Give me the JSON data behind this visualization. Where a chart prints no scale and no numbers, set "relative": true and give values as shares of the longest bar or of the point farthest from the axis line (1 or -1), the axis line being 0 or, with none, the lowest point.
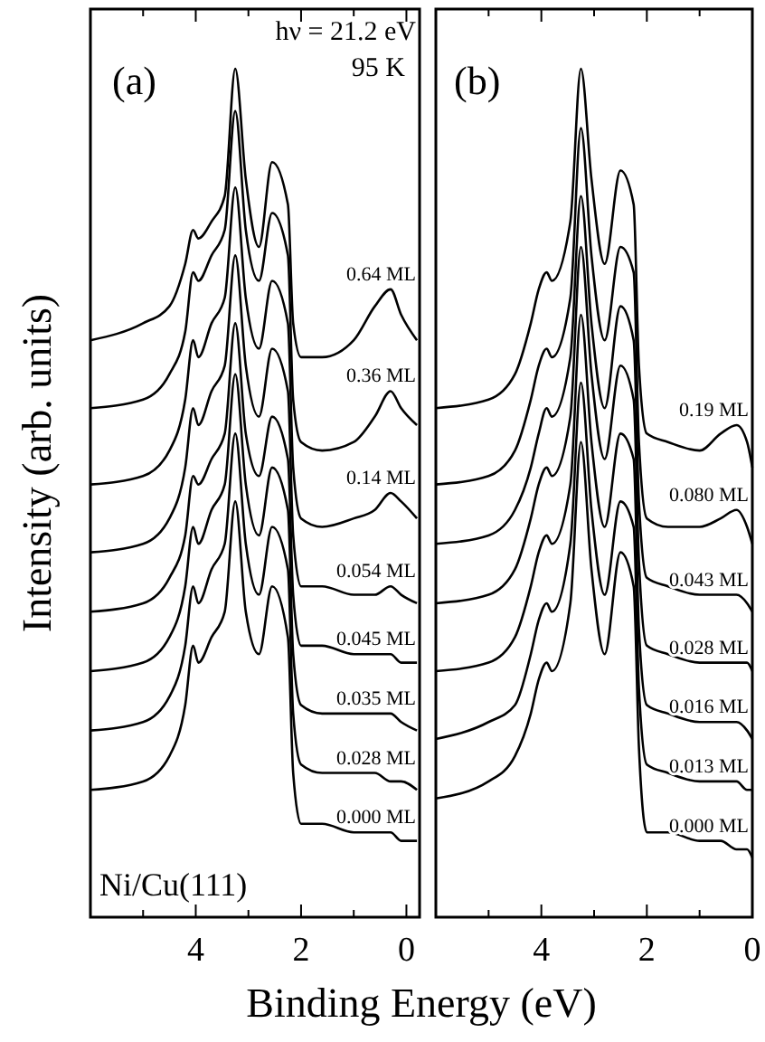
{
  "chart_data": [
    {
      "type": "line",
      "relative": true,
      "xlabel": "Binding Energy (eV)",
      "ylabel": "Intensity (arb. units)",
      "xlim": [
        6,
        -0.25
      ],
      "xticks": [
        {
          "value": 5,
          "label": null
        },
        4,
        {
          "value": 3,
          "label": null
        },
        2,
        {
          "value": 1,
          "label": null
        },
        0
      ],
      "tick_labels": "x",
      "grid": false,
      "annotations": [
        "(a)",
        "hν = 21.2 eV",
        "95 K",
        "Ni/Cu(111)"
      ],
      "x": [
        6,
        5,
        4.5,
        4.2,
        4.05,
        3.95,
        3.7,
        3.45,
        3.25,
        3.05,
        2.8,
        2.55,
        2.25,
        2.15,
        2.0,
        1.6,
        1.0,
        0.6,
        0.3,
        0.1,
        -0.2
      ],
      "series": [
        {
          "name": "0.64 ML",
          "color": "#000000",
          "values": [
            0.68,
            0.7,
            0.72,
            0.77,
            0.81,
            0.8,
            0.82,
            0.85,
            1,
            0.87,
            0.79,
            0.89,
            0.84,
            0.7,
            0.66,
            0.66,
            0.68,
            0.72,
            0.74,
            0.71,
            0.68
          ]
        },
        {
          "name": "0.36 ML",
          "color": "#000000",
          "values": [
            0.6,
            0.61,
            0.64,
            0.69,
            0.76,
            0.75,
            0.78,
            0.81,
            0.95,
            0.81,
            0.75,
            0.83,
            0.78,
            0.61,
            0.56,
            0.55,
            0.56,
            0.59,
            0.62,
            0.6,
            0.58
          ]
        },
        {
          "name": "0.14 ML",
          "color": "#000000",
          "values": [
            0.51,
            0.52,
            0.55,
            0.61,
            0.68,
            0.66,
            0.7,
            0.73,
            0.86,
            0.73,
            0.67,
            0.75,
            0.7,
            0.53,
            0.47,
            0.46,
            0.47,
            0.48,
            0.5,
            0.49,
            0.47
          ]
        },
        {
          "name": "0.054 ML",
          "color": "#000000",
          "values": [
            0.43,
            0.44,
            0.47,
            0.53,
            0.6,
            0.58,
            0.62,
            0.65,
            0.78,
            0.65,
            0.59,
            0.67,
            0.62,
            0.45,
            0.39,
            0.39,
            0.38,
            0.38,
            0.39,
            0.38,
            0.37
          ]
        },
        {
          "name": "0.045 ML",
          "color": "#000000",
          "values": [
            0.36,
            0.37,
            0.4,
            0.45,
            0.52,
            0.51,
            0.54,
            0.57,
            0.7,
            0.57,
            0.52,
            0.59,
            0.54,
            0.38,
            0.32,
            0.32,
            0.31,
            0.31,
            0.31,
            0.3,
            0.3
          ]
        },
        {
          "name": "0.035 ML",
          "color": "#000000",
          "values": [
            0.29,
            0.3,
            0.33,
            0.39,
            0.46,
            0.44,
            0.48,
            0.51,
            0.64,
            0.51,
            0.45,
            0.53,
            0.48,
            0.31,
            0.25,
            0.24,
            0.24,
            0.24,
            0.24,
            0.23,
            0.22
          ]
        },
        {
          "name": "0.028 ML",
          "color": "#000000",
          "values": [
            0.22,
            0.23,
            0.26,
            0.32,
            0.39,
            0.37,
            0.41,
            0.44,
            0.57,
            0.44,
            0.38,
            0.46,
            0.41,
            0.24,
            0.18,
            0.17,
            0.17,
            0.17,
            0.16,
            0.16,
            0.15
          ]
        },
        {
          "name": "0.000 ML",
          "color": "#000000",
          "values": [
            0.15,
            0.16,
            0.19,
            0.25,
            0.32,
            0.3,
            0.33,
            0.36,
            0.49,
            0.36,
            0.31,
            0.39,
            0.33,
            0.17,
            0.11,
            0.11,
            0.1,
            0.1,
            0.1,
            0.09,
            0.09
          ]
        }
      ]
    },
    {
      "type": "line",
      "relative": true,
      "xlim": [
        6,
        0
      ],
      "xticks": [
        {
          "value": 5,
          "label": null
        },
        4,
        {
          "value": 3,
          "label": null
        },
        2,
        {
          "value": 1,
          "label": null
        },
        0
      ],
      "tick_labels": "x",
      "grid": false,
      "annotations": [
        "(b)"
      ],
      "x": [
        6,
        5,
        4.5,
        4.2,
        4.05,
        3.9,
        3.8,
        3.45,
        3.25,
        3.05,
        2.8,
        2.5,
        2.25,
        2.15,
        2.0,
        1.6,
        1.0,
        0.6,
        0.3,
        0.1,
        0
      ],
      "series": [
        {
          "name": "0.19 ML",
          "color": "#000000",
          "values": [
            0.6,
            0.61,
            0.64,
            0.7,
            0.74,
            0.76,
            0.75,
            0.82,
            1,
            0.87,
            0.77,
            0.88,
            0.84,
            0.65,
            0.57,
            0.56,
            0.55,
            0.57,
            0.58,
            0.56,
            0.53
          ]
        },
        {
          "name": "0.080 ML",
          "color": "#000000",
          "values": [
            0.51,
            0.52,
            0.55,
            0.61,
            0.65,
            0.67,
            0.66,
            0.73,
            0.93,
            0.78,
            0.68,
            0.79,
            0.76,
            0.56,
            0.47,
            0.46,
            0.46,
            0.47,
            0.48,
            0.46,
            0.44
          ]
        },
        {
          "name": "0.043 ML",
          "color": "#000000",
          "values": [
            0.44,
            0.45,
            0.48,
            0.53,
            0.57,
            0.6,
            0.59,
            0.66,
            0.85,
            0.7,
            0.6,
            0.72,
            0.68,
            0.49,
            0.4,
            0.39,
            0.38,
            0.38,
            0.38,
            0.37,
            0.36
          ]
        },
        {
          "name": "0.028 ML",
          "color": "#000000",
          "values": [
            0.37,
            0.38,
            0.41,
            0.47,
            0.51,
            0.53,
            0.52,
            0.59,
            0.79,
            0.64,
            0.54,
            0.65,
            0.61,
            0.42,
            0.32,
            0.31,
            0.3,
            0.3,
            0.3,
            0.3,
            0.29
          ]
        },
        {
          "name": "0.016 ML",
          "color": "#000000",
          "values": [
            0.29,
            0.3,
            0.33,
            0.39,
            0.43,
            0.45,
            0.44,
            0.51,
            0.71,
            0.56,
            0.46,
            0.57,
            0.54,
            0.34,
            0.25,
            0.24,
            0.23,
            0.23,
            0.23,
            0.22,
            0.21
          ]
        },
        {
          "name": "0.013 ML",
          "color": "#000000",
          "values": [
            0.21,
            0.23,
            0.25,
            0.31,
            0.35,
            0.37,
            0.36,
            0.44,
            0.63,
            0.48,
            0.38,
            0.49,
            0.46,
            0.27,
            0.18,
            0.17,
            0.16,
            0.16,
            0.16,
            0.15,
            0.15
          ]
        },
        {
          "name": "0.000 ML",
          "color": "#000000",
          "values": [
            0.14,
            0.16,
            0.19,
            0.24,
            0.28,
            0.3,
            0.29,
            0.37,
            0.56,
            0.41,
            0.31,
            0.43,
            0.39,
            0.2,
            0.1,
            0.1,
            0.09,
            0.09,
            0.08,
            0.08,
            0.07
          ]
        }
      ]
    }
  ]
}
